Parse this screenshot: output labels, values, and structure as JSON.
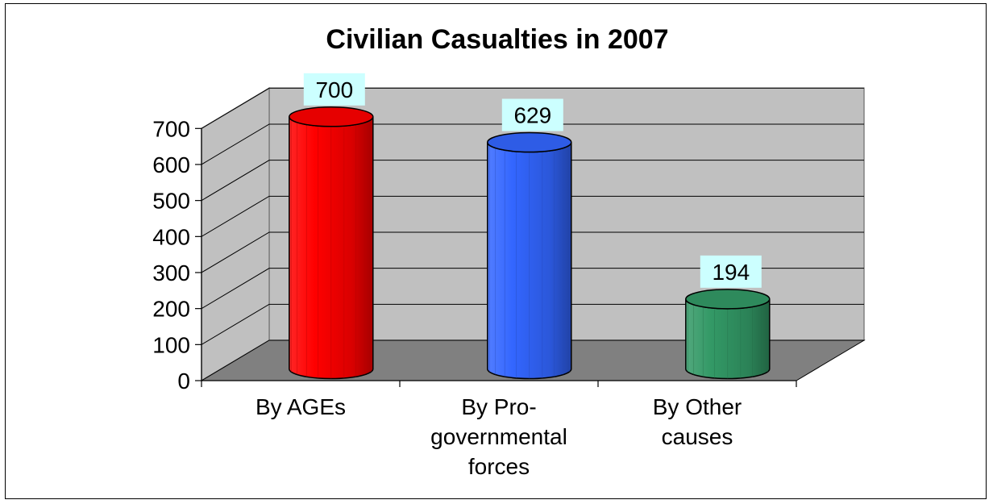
{
  "chart_data": {
    "type": "bar",
    "title": "Civilian Casualties in 2007",
    "categories": [
      "By AGEs",
      "By Pro-governmental forces",
      "By Other causes"
    ],
    "category_lines": [
      [
        "By AGEs"
      ],
      [
        "By Pro-",
        "governmental",
        "forces"
      ],
      [
        "By Other",
        "causes"
      ]
    ],
    "values": [
      700,
      629,
      194
    ],
    "data_labels": [
      "700",
      "629",
      "194"
    ],
    "colors": [
      "#ff0000",
      "#3366ff",
      "#339966"
    ],
    "yticks": [
      "0",
      "100",
      "200",
      "300",
      "400",
      "500",
      "600",
      "700"
    ],
    "ylim": [
      0,
      700
    ],
    "grid": true,
    "legend": "none",
    "style": "3d-cylinder",
    "wall_color": "#c0c0c0",
    "floor_color": "#808080",
    "data_label_bg": "#ccffff"
  }
}
